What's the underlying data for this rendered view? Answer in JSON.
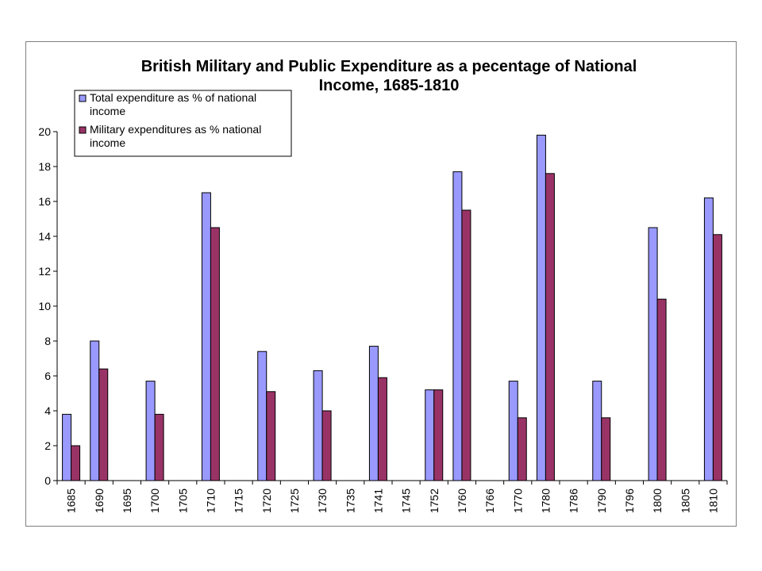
{
  "chart_data": {
    "type": "bar",
    "title": "British Military and Public Expenditure as a pecentage of National Income, 1685-1810",
    "xlabel": "",
    "ylabel": "",
    "ylim": [
      0,
      20
    ],
    "yticks": [
      0,
      2,
      4,
      6,
      8,
      10,
      12,
      14,
      16,
      18,
      20
    ],
    "categories": [
      "1685",
      "1690",
      "1695",
      "1700",
      "1705",
      "1710",
      "1715",
      "1720",
      "1725",
      "1730",
      "1735",
      "1741",
      "1745",
      "1752",
      "1760",
      "1766",
      "1770",
      "1780",
      "1786",
      "1790",
      "1796",
      "1800",
      "1805",
      "1810"
    ],
    "series": [
      {
        "name": "Total expenditure as % of national income",
        "color": "#9999ff",
        "values": [
          3.8,
          8.0,
          null,
          5.7,
          null,
          16.5,
          null,
          7.4,
          null,
          6.3,
          null,
          7.7,
          null,
          5.2,
          17.7,
          null,
          5.7,
          19.8,
          null,
          5.7,
          null,
          14.5,
          null,
          16.2
        ]
      },
      {
        "name": "Military expenditures as % national income",
        "color": "#993366",
        "values": [
          2.0,
          6.4,
          null,
          3.8,
          null,
          14.5,
          null,
          5.1,
          null,
          4.0,
          null,
          5.9,
          null,
          5.2,
          15.5,
          null,
          3.6,
          17.6,
          null,
          3.6,
          null,
          10.4,
          null,
          14.1
        ]
      }
    ],
    "legend": {
      "placement": "top-left",
      "entries": [
        [
          "Total expenditure as % of national",
          "income"
        ],
        [
          "Military expenditures as % national",
          "income"
        ]
      ]
    },
    "grid": false
  }
}
